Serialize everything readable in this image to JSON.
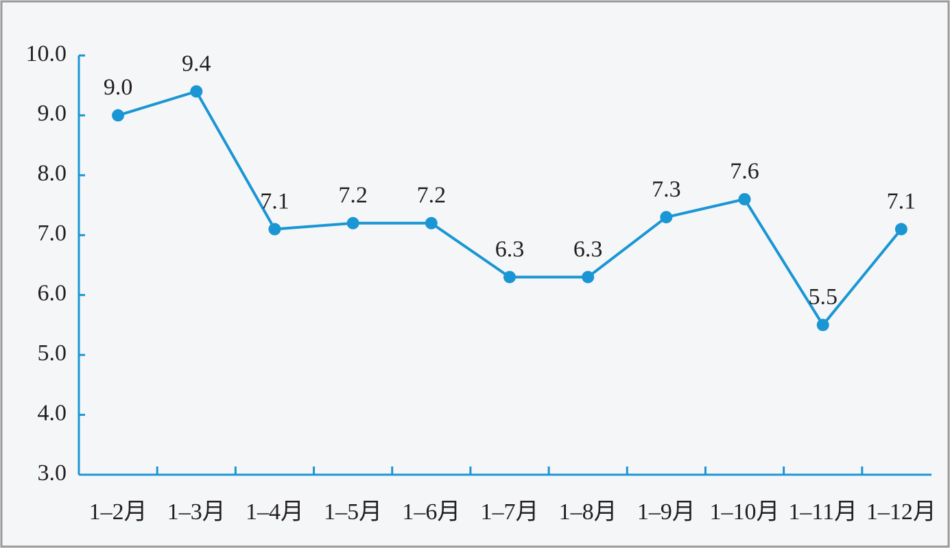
{
  "chart_data": {
    "type": "line",
    "categories": [
      "1–2月",
      "1–3月",
      "1–4月",
      "1–5月",
      "1–6月",
      "1–7月",
      "1–8月",
      "1–9月",
      "1–10月",
      "1–11月",
      "1–12月"
    ],
    "values": [
      9.0,
      9.4,
      7.1,
      7.2,
      7.2,
      6.3,
      6.3,
      7.3,
      7.6,
      5.5,
      7.1
    ],
    "value_labels": [
      "9.0",
      "9.4",
      "7.1",
      "7.2",
      "7.2",
      "6.3",
      "6.3",
      "7.3",
      "7.6",
      "5.5",
      "7.1"
    ],
    "color": "#1a96d4",
    "ylim": [
      3,
      10
    ],
    "yticks": [
      {
        "value": 3,
        "label": "3.0"
      },
      {
        "value": 4,
        "label": "4.0"
      },
      {
        "value": 5,
        "label": "5.0"
      },
      {
        "value": 6,
        "label": "6.0"
      },
      {
        "value": 7,
        "label": "7.0"
      },
      {
        "value": 8,
        "label": "8.0"
      },
      {
        "value": 9,
        "label": "9.0"
      },
      {
        "value": 10,
        "label": "10.0"
      }
    ]
  }
}
